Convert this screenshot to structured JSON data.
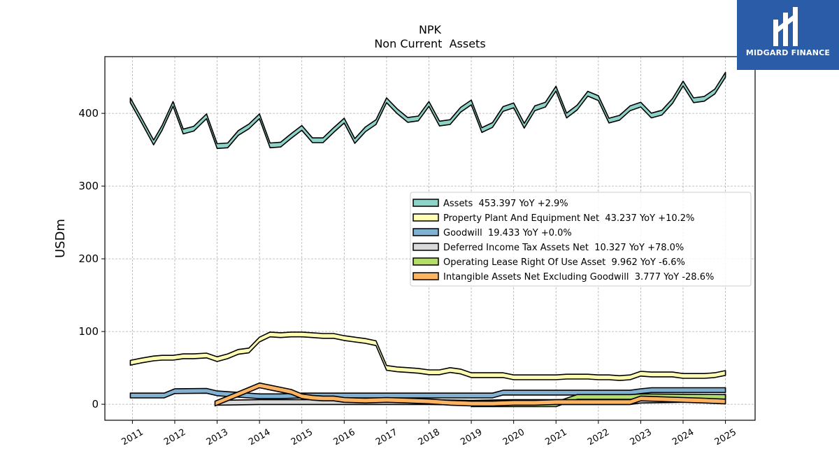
{
  "brand": {
    "name": "MIDGARD FINANCE",
    "bg_color": "#2a5ca8"
  },
  "chart_data": {
    "type": "area",
    "title": "NPK",
    "subtitle": "Non Current  Assets",
    "ylabel": "USDm",
    "xlabel": "",
    "ylim": [
      -22,
      478
    ],
    "xlim": [
      2010.35,
      2025.7
    ],
    "yticks": [
      0,
      100,
      200,
      300,
      400
    ],
    "xticks": [
      2011,
      2012,
      2013,
      2014,
      2015,
      2016,
      2017,
      2018,
      2019,
      2020,
      2021,
      2022,
      2023,
      2024,
      2025
    ],
    "grid": true,
    "legend_position": "center-right",
    "series": [
      {
        "name": "Assets  453.397 YoY +2.9%",
        "color": "#8dd3c7",
        "x": [
          2010.95,
          2011.2,
          2011.5,
          2011.7,
          2011.96,
          2012.2,
          2012.45,
          2012.75,
          2013.0,
          2013.25,
          2013.5,
          2013.75,
          2014.0,
          2014.25,
          2014.5,
          2014.75,
          2015.0,
          2015.25,
          2015.5,
          2015.75,
          2016.0,
          2016.25,
          2016.5,
          2016.75,
          2017.0,
          2017.25,
          2017.5,
          2017.75,
          2018.0,
          2018.25,
          2018.5,
          2018.75,
          2019.0,
          2019.25,
          2019.5,
          2019.75,
          2020.0,
          2020.25,
          2020.5,
          2020.75,
          2021.0,
          2021.25,
          2021.5,
          2021.75,
          2022.0,
          2022.25,
          2022.5,
          2022.75,
          2023.0,
          2023.25,
          2023.5,
          2023.75,
          2024.0,
          2024.25,
          2024.5,
          2024.75,
          2025.0
        ],
        "y": [
          418,
          392,
          360,
          380,
          413,
          375,
          379,
          396,
          355,
          356,
          373,
          382,
          396,
          356,
          357,
          369,
          380,
          363,
          363,
          377,
          390,
          362,
          378,
          388,
          418,
          403,
          391,
          393,
          413,
          386,
          388,
          405,
          415,
          377,
          384,
          406,
          411,
          383,
          407,
          412,
          434,
          397,
          408,
          427,
          421,
          390,
          394,
          407,
          412,
          397,
          401,
          417,
          441,
          418,
          420,
          430,
          453
        ]
      },
      {
        "name": "Property Plant And Equipment Net  43.237 YoY +10.2%",
        "color": "#ffffb3",
        "x": [
          2010.95,
          2011.2,
          2011.5,
          2011.7,
          2011.96,
          2012.2,
          2012.45,
          2012.75,
          2013.0,
          2013.25,
          2013.5,
          2013.75,
          2014.0,
          2014.25,
          2014.5,
          2014.75,
          2015.0,
          2015.25,
          2015.5,
          2015.75,
          2016.0,
          2016.25,
          2016.5,
          2016.75,
          2017.0,
          2017.25,
          2017.5,
          2017.75,
          2018.0,
          2018.25,
          2018.5,
          2018.75,
          2019.0,
          2019.25,
          2019.5,
          2019.75,
          2020.0,
          2020.25,
          2020.5,
          2020.75,
          2021.0,
          2021.25,
          2021.5,
          2021.75,
          2022.0,
          2022.25,
          2022.5,
          2022.75,
          2023.0,
          2023.25,
          2023.5,
          2023.75,
          2024.0,
          2024.25,
          2024.5,
          2024.75,
          2025.0
        ],
        "y": [
          57,
          60,
          63,
          64,
          64,
          66,
          66,
          67,
          62,
          66,
          72,
          74,
          89,
          96,
          95,
          96,
          96,
          95,
          94,
          94,
          91,
          89,
          87,
          84,
          50,
          48,
          47,
          46,
          44,
          44,
          47,
          45,
          40,
          40,
          40,
          40,
          37,
          37,
          37,
          37,
          37,
          38,
          38,
          38,
          37,
          37,
          36,
          37,
          42,
          41,
          41,
          41,
          39,
          39,
          39,
          40,
          43
        ]
      },
      {
        "name": "Goodwill  19.433 YoY +0.0%",
        "color": "#80b1d3",
        "x": [
          2010.95,
          2011.75,
          2012.0,
          2012.75,
          2013.0,
          2013.5,
          2014.0,
          2014.5,
          2015.0,
          2016.0,
          2017.0,
          2018.0,
          2019.0,
          2019.5,
          2019.75,
          2020.0,
          2021.0,
          2022.0,
          2022.75,
          2023.0,
          2023.25,
          2024.0,
          2025.0
        ],
        "y": [
          12,
          12,
          18,
          18.5,
          15,
          13,
          11,
          11,
          12,
          12,
          12,
          12,
          12,
          12,
          16,
          16,
          16,
          16,
          16,
          18,
          19.4,
          19.4,
          19.4
        ]
      },
      {
        "name": "Deferred Income Tax Assets Net  10.327 YoY +78.0%",
        "color": "#d9d9d9",
        "x": [
          2013.0,
          2014.0,
          2015.0,
          2016.0,
          2017.0,
          2018.0,
          2019.0,
          2020.0,
          2021.0,
          2022.0,
          2022.75,
          2023.0,
          2024.0,
          2025.0
        ],
        "y": [
          2,
          3,
          3,
          3,
          3,
          3,
          2,
          3,
          3,
          3,
          3,
          5,
          6,
          10.3
        ]
      },
      {
        "name": "Operating Lease Right Of Use Asset  9.962 YoY -6.6%",
        "color": "#b3de69",
        "x": [
          2019.0,
          2019.75,
          2020.0,
          2021.0,
          2021.25,
          2021.5,
          2022.0,
          2022.75,
          2023.0,
          2024.0,
          2025.0
        ],
        "y": [
          0,
          0,
          0,
          0,
          5,
          10,
          10,
          10,
          11,
          10.5,
          10
        ]
      },
      {
        "name": "Intangible Assets Net Excluding Goodwill  3.777 YoY -28.6%",
        "color": "#fdb462",
        "x": [
          2012.95,
          2013.5,
          2014.0,
          2014.5,
          2014.75,
          2015.0,
          2015.25,
          2015.5,
          2015.75,
          2016.0,
          2016.5,
          2017.0,
          2017.5,
          2018.0,
          2018.5,
          2019.0,
          2019.5,
          2020.0,
          2020.5,
          2021.0,
          2021.5,
          2022.0,
          2022.5,
          2022.75,
          2023.0,
          2023.5,
          2024.0,
          2024.5,
          2025.0
        ],
        "y": [
          1,
          14,
          26,
          20,
          17,
          11,
          9,
          8,
          8,
          6,
          5,
          6,
          5,
          4,
          2,
          1,
          1,
          2,
          2,
          3,
          3,
          3,
          3,
          3,
          8,
          7,
          6,
          5,
          3.8
        ]
      }
    ]
  }
}
